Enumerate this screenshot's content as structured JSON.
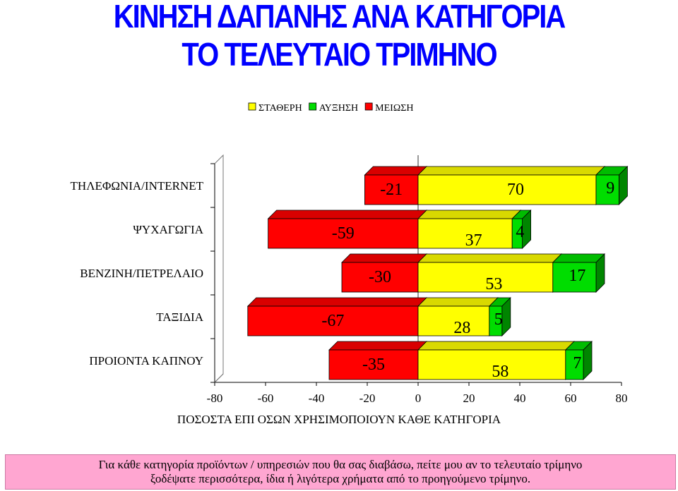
{
  "title_line1": "ΚΙΝΗΣΗ ΔΑΠΑΝΗΣ ΑΝΑ ΚΑΤΗΓΟΡΙΑ",
  "title_line2": "ΤΟ ΤΕΛΕΥΤΑΙΟ ΤΡΙΜΗΝΟ",
  "footnote": {
    "line1": "Για κάθε κατηγορία προϊόντων / υπηρεσιών που θα σας διαβάσω, πείτε μου αν το τελευταίο τρίμηνο",
    "line2": "ξοδέψατε περισσότερα, ίδια ή λιγότερα χρήματα από το προηγούμενο τρίμηνο."
  },
  "chart_data": {
    "type": "bar",
    "orientation": "horizontal",
    "stacked": true,
    "categories": [
      "ΤΗΛΕΦΩΝΙΑ/INTERNET",
      "ΨΥΧΑΓΩΓΙΑ",
      "ΒΕΝΖΙΝΗ/ΠΕΤΡΕΛΑΙΟ",
      "ΤΑΞΙΔΙΑ",
      "ΠΡΟΙΟΝΤΑ ΚΑΠΝΟΥ"
    ],
    "series": [
      {
        "name": "ΣΤΑΘΕΡΗ",
        "color": "#ffff00",
        "values": [
          70,
          37,
          53,
          28,
          58
        ]
      },
      {
        "name": "ΑΥΞΗΣΗ",
        "color": "#00dd00",
        "values": [
          9,
          4,
          17,
          5,
          7
        ]
      },
      {
        "name": "ΜΕΙΩΣΗ",
        "color": "#ff0000",
        "values": [
          -21,
          -59,
          -30,
          -67,
          -35
        ]
      }
    ],
    "xlabel": "ΠΟΣΟΣΤΑ ΕΠΙ ΟΣΩΝ ΧΡΗΣΙΜΟΠΟΙΟΥΝ ΚΑΘΕ ΚΑΤΗΓΟΡΙΑ",
    "xlim": [
      -80,
      80
    ],
    "xticks": [
      "-80",
      "-60",
      "-40",
      "-20",
      "0",
      "20",
      "40",
      "60",
      "80"
    ],
    "legend_position": "top",
    "grid": false,
    "style": "3d"
  }
}
